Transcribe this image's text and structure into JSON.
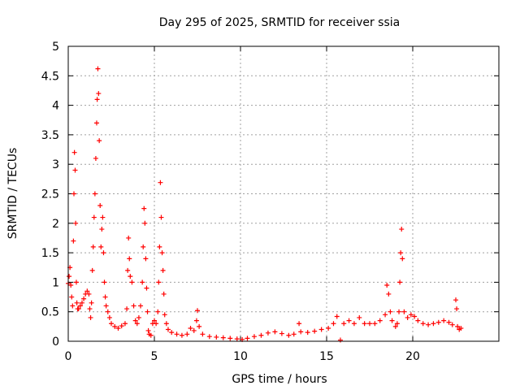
{
  "chart_data": {
    "type": "scatter",
    "title": "Day 295 of 2025, SRMTID for receiver ssia",
    "xlabel": "GPS time / hours",
    "ylabel": "SRMTID / TECUs",
    "xlim": [
      0,
      25
    ],
    "ylim": [
      0,
      5
    ],
    "x_ticks": [
      0,
      5,
      10,
      15,
      20
    ],
    "x_tick_labels": [
      "0",
      "5",
      "10",
      "15",
      "20"
    ],
    "y_ticks": [
      0,
      0.5,
      1,
      1.5,
      2,
      2.5,
      3,
      3.5,
      4,
      4.5,
      5
    ],
    "y_tick_labels": [
      "0",
      "0.5",
      "1",
      "1.5",
      "2",
      "2.5",
      "3",
      "3.5",
      "4",
      "4.5",
      "5"
    ],
    "grid": true,
    "marker": "+",
    "series": [
      {
        "name": "SRMTID",
        "color": "#ff0000",
        "points": [
          [
            0.0,
            0.98
          ],
          [
            0.05,
            1.1
          ],
          [
            0.1,
            1.25
          ],
          [
            0.15,
            0.95
          ],
          [
            0.2,
            0.75
          ],
          [
            0.25,
            0.6
          ],
          [
            0.3,
            1.7
          ],
          [
            0.33,
            2.5
          ],
          [
            0.36,
            3.2
          ],
          [
            0.4,
            2.9
          ],
          [
            0.43,
            2.0
          ],
          [
            0.47,
            1.0
          ],
          [
            0.5,
            0.65
          ],
          [
            0.55,
            0.55
          ],
          [
            0.6,
            0.55
          ],
          [
            0.7,
            0.6
          ],
          [
            0.8,
            0.65
          ],
          [
            0.9,
            0.72
          ],
          [
            1.0,
            0.8
          ],
          [
            1.1,
            0.85
          ],
          [
            1.2,
            0.8
          ],
          [
            1.25,
            0.55
          ],
          [
            1.3,
            0.4
          ],
          [
            1.35,
            0.65
          ],
          [
            1.4,
            1.2
          ],
          [
            1.45,
            1.6
          ],
          [
            1.5,
            2.1
          ],
          [
            1.55,
            2.5
          ],
          [
            1.6,
            3.1
          ],
          [
            1.65,
            3.7
          ],
          [
            1.68,
            4.1
          ],
          [
            1.72,
            4.62
          ],
          [
            1.76,
            4.2
          ],
          [
            1.8,
            3.4
          ],
          [
            1.85,
            2.3
          ],
          [
            1.9,
            1.6
          ],
          [
            1.95,
            1.9
          ],
          [
            2.0,
            2.1
          ],
          [
            2.05,
            1.5
          ],
          [
            2.1,
            1.0
          ],
          [
            2.15,
            0.75
          ],
          [
            2.2,
            0.6
          ],
          [
            2.3,
            0.5
          ],
          [
            2.4,
            0.4
          ],
          [
            2.5,
            0.3
          ],
          [
            2.7,
            0.25
          ],
          [
            2.9,
            0.22
          ],
          [
            3.1,
            0.26
          ],
          [
            3.3,
            0.3
          ],
          [
            3.4,
            0.55
          ],
          [
            3.45,
            1.2
          ],
          [
            3.5,
            1.75
          ],
          [
            3.55,
            1.4
          ],
          [
            3.6,
            1.1
          ],
          [
            3.7,
            1.0
          ],
          [
            3.8,
            0.6
          ],
          [
            3.9,
            0.35
          ],
          [
            4.0,
            0.3
          ],
          [
            4.1,
            0.4
          ],
          [
            4.2,
            0.6
          ],
          [
            4.3,
            1.0
          ],
          [
            4.35,
            1.6
          ],
          [
            4.4,
            2.25
          ],
          [
            4.45,
            2.0
          ],
          [
            4.5,
            1.4
          ],
          [
            4.55,
            0.9
          ],
          [
            4.6,
            0.5
          ],
          [
            4.65,
            0.18
          ],
          [
            4.7,
            0.12
          ],
          [
            4.8,
            0.1
          ],
          [
            4.9,
            0.3
          ],
          [
            5.0,
            0.35
          ],
          [
            5.1,
            0.3
          ],
          [
            5.2,
            0.5
          ],
          [
            5.25,
            1.0
          ],
          [
            5.3,
            1.6
          ],
          [
            5.35,
            2.69
          ],
          [
            5.4,
            2.1
          ],
          [
            5.45,
            1.5
          ],
          [
            5.5,
            1.2
          ],
          [
            5.55,
            0.8
          ],
          [
            5.6,
            0.45
          ],
          [
            5.7,
            0.3
          ],
          [
            5.8,
            0.2
          ],
          [
            6.0,
            0.15
          ],
          [
            6.3,
            0.12
          ],
          [
            6.6,
            0.1
          ],
          [
            6.9,
            0.12
          ],
          [
            7.1,
            0.22
          ],
          [
            7.3,
            0.18
          ],
          [
            7.45,
            0.35
          ],
          [
            7.5,
            0.52
          ],
          [
            7.6,
            0.25
          ],
          [
            7.8,
            0.12
          ],
          [
            8.2,
            0.08
          ],
          [
            8.6,
            0.07
          ],
          [
            9.0,
            0.06
          ],
          [
            9.4,
            0.05
          ],
          [
            9.8,
            0.04
          ],
          [
            10.1,
            0.03
          ],
          [
            10.4,
            0.05
          ],
          [
            10.8,
            0.08
          ],
          [
            11.2,
            0.1
          ],
          [
            11.6,
            0.14
          ],
          [
            12.0,
            0.16
          ],
          [
            12.4,
            0.13
          ],
          [
            12.8,
            0.1
          ],
          [
            13.1,
            0.12
          ],
          [
            13.4,
            0.3
          ],
          [
            13.5,
            0.16
          ],
          [
            13.9,
            0.15
          ],
          [
            14.3,
            0.17
          ],
          [
            14.7,
            0.2
          ],
          [
            15.1,
            0.22
          ],
          [
            15.4,
            0.3
          ],
          [
            15.6,
            0.42
          ],
          [
            15.8,
            0.02
          ],
          [
            16.0,
            0.3
          ],
          [
            16.3,
            0.35
          ],
          [
            16.6,
            0.3
          ],
          [
            16.9,
            0.4
          ],
          [
            17.2,
            0.3
          ],
          [
            17.5,
            0.3
          ],
          [
            17.8,
            0.3
          ],
          [
            18.1,
            0.35
          ],
          [
            18.4,
            0.45
          ],
          [
            18.5,
            0.95
          ],
          [
            18.6,
            0.8
          ],
          [
            18.7,
            0.5
          ],
          [
            18.8,
            0.35
          ],
          [
            19.0,
            0.25
          ],
          [
            19.1,
            0.3
          ],
          [
            19.2,
            0.5
          ],
          [
            19.25,
            1.0
          ],
          [
            19.3,
            1.5
          ],
          [
            19.35,
            1.9
          ],
          [
            19.4,
            1.4
          ],
          [
            19.5,
            0.5
          ],
          [
            19.7,
            0.4
          ],
          [
            19.9,
            0.45
          ],
          [
            20.1,
            0.42
          ],
          [
            20.3,
            0.35
          ],
          [
            20.6,
            0.3
          ],
          [
            20.9,
            0.28
          ],
          [
            21.2,
            0.3
          ],
          [
            21.5,
            0.32
          ],
          [
            21.8,
            0.35
          ],
          [
            22.1,
            0.32
          ],
          [
            22.3,
            0.28
          ],
          [
            22.5,
            0.7
          ],
          [
            22.55,
            0.55
          ],
          [
            22.6,
            0.25
          ],
          [
            22.7,
            0.2
          ],
          [
            22.8,
            0.22
          ]
        ]
      }
    ]
  }
}
